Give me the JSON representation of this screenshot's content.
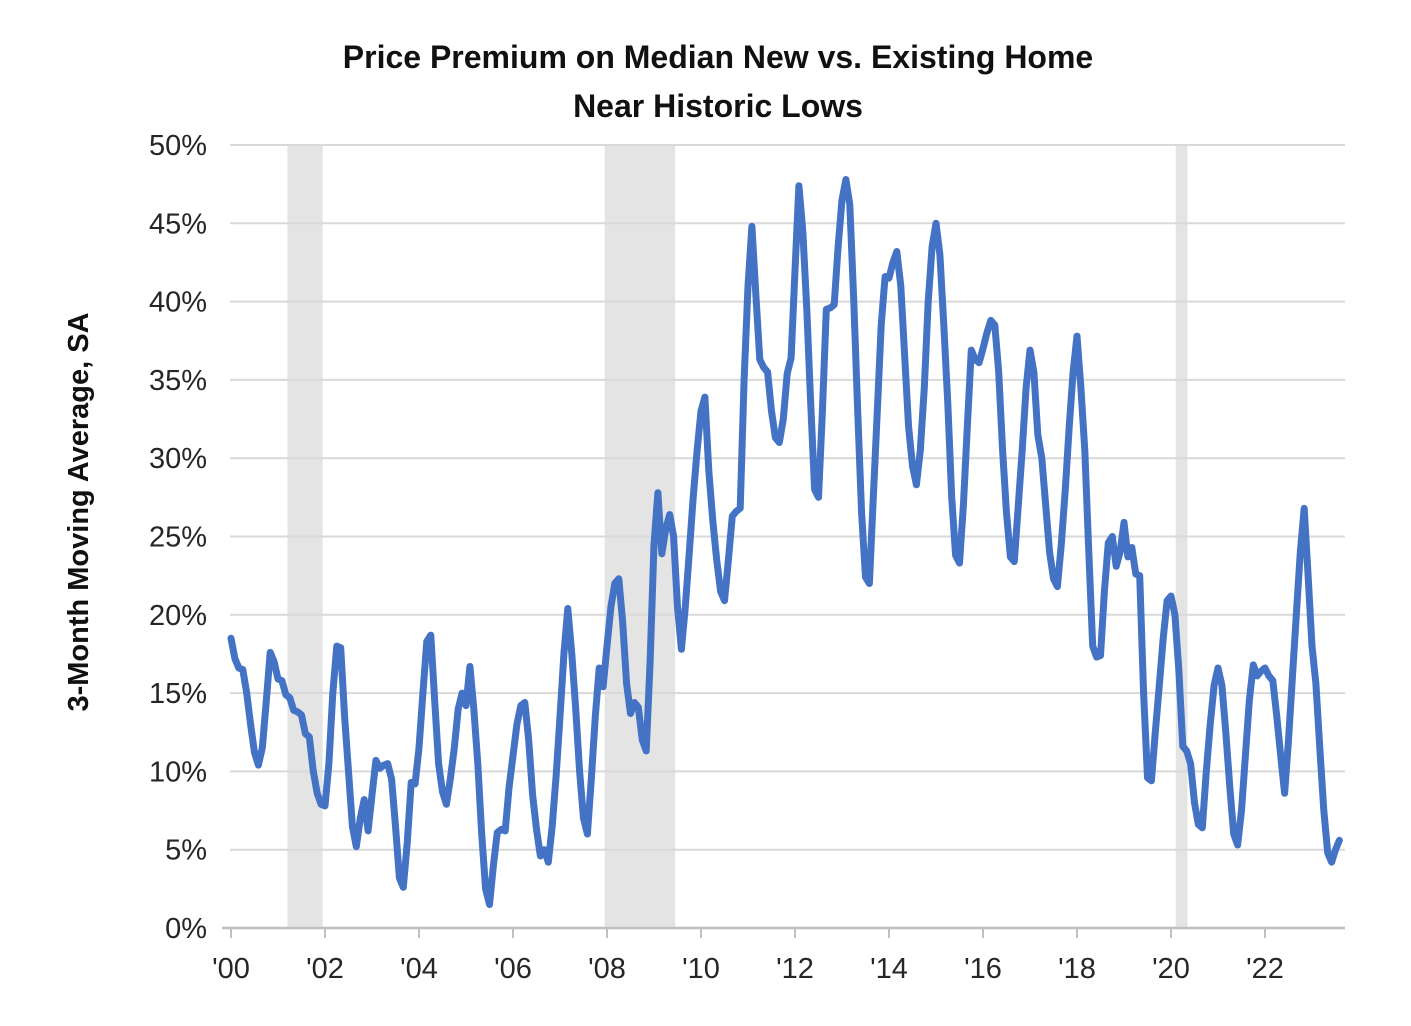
{
  "chart_data": {
    "type": "line",
    "title_line1": "Price Premium on Median New vs. Existing Home",
    "title_line2": "Near Historic Lows",
    "ylabel": "3-Month Moving Average, SA",
    "ylim": [
      0,
      50
    ],
    "ytick_step": 5,
    "ytick_labels": [
      "0%",
      "5%",
      "10%",
      "15%",
      "20%",
      "25%",
      "30%",
      "35%",
      "40%",
      "45%",
      "50%"
    ],
    "xtick_labels": [
      "'00",
      "'02",
      "'04",
      "'06",
      "'08",
      "'10",
      "'12",
      "'14",
      "'16",
      "'18",
      "'20",
      "'22"
    ],
    "xtick_years": [
      2000,
      2002,
      2004,
      2006,
      2008,
      2010,
      2012,
      2014,
      2016,
      2018,
      2020,
      2022
    ],
    "x_start_year": 2000,
    "x_start_month": 1,
    "frequency": "monthly",
    "grid": "horizontal",
    "legend": "none",
    "recession_bands": [
      {
        "start_year": 2001.2,
        "end_year": 2001.95
      },
      {
        "start_year": 2007.95,
        "end_year": 2009.45
      },
      {
        "start_year": 2020.1,
        "end_year": 2020.35
      }
    ],
    "colors": {
      "line": "#4472C4",
      "gridline": "#D9D9D9",
      "band": "#E4E4E4",
      "axis": "#BFBFBF",
      "tick_text": "#262626",
      "title_text": "#111111"
    },
    "series": [
      {
        "name": "3-Month Moving Average, SA",
        "color": "#4472C4",
        "values": [
          18.5,
          17.2,
          16.6,
          16.5,
          15.0,
          13.0,
          11.2,
          10.4,
          11.5,
          14.5,
          17.6,
          17.0,
          15.9,
          15.8,
          14.9,
          14.7,
          13.9,
          13.8,
          13.6,
          12.4,
          12.2,
          10.0,
          8.6,
          7.9,
          7.8,
          10.5,
          15.0,
          18.0,
          17.9,
          13.5,
          10.0,
          6.5,
          5.2,
          7.0,
          8.2,
          6.2,
          8.5,
          10.7,
          10.2,
          10.4,
          10.5,
          9.5,
          6.5,
          3.2,
          2.6,
          5.5,
          9.3,
          9.2,
          11.5,
          15.0,
          18.3,
          18.7,
          14.5,
          10.5,
          8.7,
          7.9,
          9.5,
          11.5,
          14.0,
          15.0,
          14.2,
          16.7,
          14.0,
          10.5,
          6.0,
          2.5,
          1.5,
          4.0,
          6.1,
          6.3,
          6.2,
          9.0,
          11.0,
          13.0,
          14.2,
          14.4,
          12.0,
          8.5,
          6.3,
          4.6,
          5.0,
          4.2,
          6.5,
          9.7,
          13.5,
          17.5,
          20.4,
          17.5,
          14.0,
          10.0,
          7.0,
          6.0,
          9.5,
          13.5,
          16.6,
          15.4,
          18.0,
          20.5,
          22.0,
          22.3,
          19.5,
          15.6,
          13.7,
          14.4,
          14.1,
          12.0,
          11.3,
          17.0,
          24.5,
          27.8,
          23.9,
          25.5,
          26.4,
          25.0,
          20.5,
          17.8,
          20.5,
          24.0,
          27.5,
          30.5,
          33.0,
          33.9,
          29.2,
          26.0,
          23.5,
          21.5,
          20.9,
          23.5,
          26.3,
          26.6,
          26.8,
          35.0,
          41.0,
          44.8,
          40.5,
          36.3,
          35.8,
          35.5,
          33.0,
          31.3,
          31.0,
          32.5,
          35.4,
          36.4,
          42.0,
          47.4,
          44.5,
          39.5,
          33.5,
          28.0,
          27.5,
          33.0,
          39.5,
          39.6,
          39.8,
          43.5,
          46.5,
          47.8,
          46.2,
          40.0,
          33.0,
          26.5,
          22.4,
          22.0,
          27.5,
          33.0,
          38.5,
          41.6,
          41.5,
          42.5,
          43.2,
          41.0,
          36.5,
          32.0,
          29.5,
          28.3,
          30.5,
          34.5,
          40.0,
          43.5,
          45.0,
          43.0,
          38.5,
          33.5,
          27.5,
          23.8,
          23.3,
          27.0,
          32.0,
          36.9,
          36.3,
          36.1,
          37.0,
          38.0,
          38.8,
          38.5,
          35.5,
          30.5,
          26.5,
          23.7,
          23.4,
          27.0,
          30.5,
          34.5,
          36.9,
          35.5,
          31.5,
          30.0,
          27.0,
          24.0,
          22.3,
          21.8,
          24.5,
          28.0,
          32.0,
          35.5,
          37.8,
          34.5,
          30.5,
          24.0,
          18.0,
          17.3,
          17.4,
          21.5,
          24.6,
          25.0,
          23.1,
          24.0,
          25.9,
          23.7,
          24.3,
          22.6,
          22.5,
          15.0,
          9.6,
          9.4,
          12.5,
          15.5,
          18.5,
          20.9,
          21.2,
          20.0,
          16.5,
          11.6,
          11.3,
          10.5,
          8.0,
          6.6,
          6.4,
          10.0,
          13.0,
          15.5,
          16.6,
          15.5,
          12.5,
          9.0,
          6.0,
          5.3,
          7.5,
          11.0,
          14.5,
          16.8,
          16.1,
          16.4,
          16.6,
          16.1,
          15.8,
          13.5,
          11.0,
          8.6,
          12.0,
          16.0,
          20.0,
          24.0,
          26.8,
          22.5,
          18.0,
          15.6,
          11.5,
          7.5,
          4.8,
          4.2,
          5.0,
          5.6
        ]
      }
    ]
  }
}
